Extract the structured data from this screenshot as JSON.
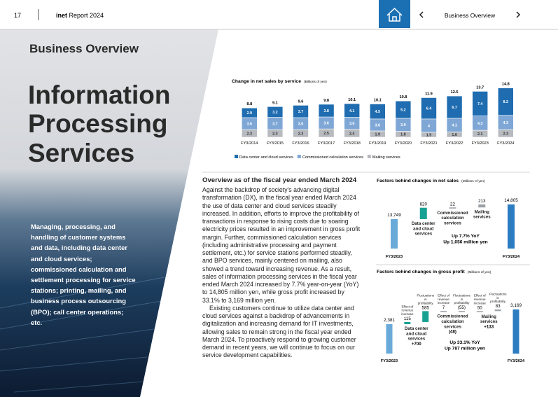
{
  "header": {
    "page": "17",
    "brand": "inet",
    "report": "Report 2024",
    "nav_title": "Business Overview"
  },
  "sidebar": {
    "section": "Business Overview",
    "title_lines": [
      "Information",
      "Processing",
      "Services"
    ],
    "summary": "Managing, processing, and handling of customer systems and data, including data center and cloud services; commissioned calculation and settlement processing for service stations; printing, mailing, and business process outsourcing (BPO); call center operations; etc."
  },
  "body": {
    "heading": "Overview as of the fiscal year ended March 2024",
    "paragraphs": [
      "Against the backdrop of society's advancing digital transformation (DX), in the fiscal year ended March 2024 the use of data center and cloud services steadily increased. In addition, efforts to improve the profitability of transactions in response to rising costs due to soaring electricity prices resulted in an improvement in gross profit margin. Further, commissioned calculation services (including administrative processing and payment settlement, etc.) for service stations performed steadily, and BPO services, mainly centered on mailing, also showed a trend toward increasing revenue. As a result, sales of information processing services in the fiscal year ended March 2024 increased by 7.7% year-on-year (YoY) to 14,805 million yen, while gross profit increased by 33.1% to 3,169 million yen.",
      "Existing customers continue to utilize data center and cloud services against a backdrop of advancements in digitalization and increasing demand for IT investments, allowing sales to remain strong in the fiscal year ended March 2024. To proactively respond to growing customer demand in recent years, we will continue to focus on our service development capabilities."
    ]
  },
  "chart_data": [
    {
      "type": "bar",
      "title": "Change in net sales by service",
      "unit": "(Billions of yen)",
      "categories": [
        "FY3/2014",
        "FY3/2015",
        "FY3/2016",
        "FY3/2017",
        "FY3/2018",
        "FY3/2019",
        "FY3/2020",
        "FY3/2021",
        "FY3/2022",
        "FY3/2023",
        "FY3/2024"
      ],
      "series": [
        {
          "name": "Data center and cloud services",
          "color": "#1f6cb0",
          "label_color": "#ffffff",
          "values": [
            2.9,
            3.2,
            3.7,
            3.8,
            4.1,
            4.5,
            5.2,
            6.4,
            6.7,
            7.4,
            8.2
          ]
        },
        {
          "name": "Commissioned calculation services",
          "color": "#7fa7d6",
          "label_color": "#ffffff",
          "values": [
            3.6,
            3.7,
            3.6,
            3.6,
            3.6,
            3.6,
            3.9,
            4.0,
            4.1,
            4.3,
            4.3
          ]
        },
        {
          "name": "Mailing services",
          "color": "#b7babf",
          "label_color": "#333333",
          "values": [
            2.3,
            2.3,
            2.3,
            2.5,
            2.4,
            1.9,
            1.8,
            1.5,
            1.6,
            2.1,
            2.3
          ]
        }
      ],
      "totals": [
        8.8,
        9.1,
        9.6,
        9.8,
        10.1,
        10.1,
        10.8,
        11.9,
        12.5,
        13.7,
        14.8
      ]
    },
    {
      "type": "waterfall",
      "title": "Factors behind changes in net sales",
      "unit": "(Millions of yen)",
      "start": {
        "category": "FY3/2023",
        "value": 13749,
        "value_label": "13,749",
        "color": "#6aaad9"
      },
      "steps": [
        {
          "name": "Data center and cloud services",
          "value": 820,
          "color": "#17a192"
        },
        {
          "name": "Commissioned calculation services",
          "value": 22,
          "color": "#9aa0a6"
        },
        {
          "name": "Mailing services",
          "value": 213,
          "color": "#9aa0a6"
        }
      ],
      "end": {
        "category": "FY3/2024",
        "value": 14805,
        "value_label": "14,805",
        "color": "#2b7cc1"
      },
      "annotation": [
        "Up 7.7% YoY",
        "Up 1,056 million yen"
      ]
    },
    {
      "type": "waterfall",
      "title": "Factors behind changes in gross profit",
      "unit": "(Millions of yen)",
      "start": {
        "category": "FY3/2023",
        "value": 2381,
        "value_label": "2,381",
        "color": "#6aaad9"
      },
      "steps": [
        {
          "name": "Data center and cloud services",
          "value": 700,
          "value_label": "+700",
          "parts": [
            {
              "name": "Effect of revenue increase",
              "value": 115,
              "color": "#17a192"
            },
            {
              "name": "Fluctuations in profitability",
              "value": 585,
              "color": "#17a192"
            }
          ]
        },
        {
          "name": "Commissioned calculation services",
          "value": -48,
          "value_label": "(48)",
          "parts": [
            {
              "name": "Effect of revenue increase",
              "value": 7,
              "color": "#9aa0a6"
            },
            {
              "name": "Fluctuations in profitability",
              "value": -55,
              "value_label": "(55)",
              "color": "#9aa0a6"
            }
          ]
        },
        {
          "name": "Mailing services",
          "value": 133,
          "value_label": "+133",
          "parts": [
            {
              "name": "Effect of revenue increase",
              "value": 50,
              "color": "#9aa0a6"
            },
            {
              "name": "Fluctuations in profitability",
              "value": 83,
              "color": "#9aa0a6"
            }
          ]
        }
      ],
      "end": {
        "category": "FY3/2024",
        "value": 3169,
        "value_label": "3,169",
        "color": "#2b7cc1"
      },
      "annotation": [
        "Up 33.1% YoY",
        "Up 787 million yen"
      ]
    }
  ]
}
